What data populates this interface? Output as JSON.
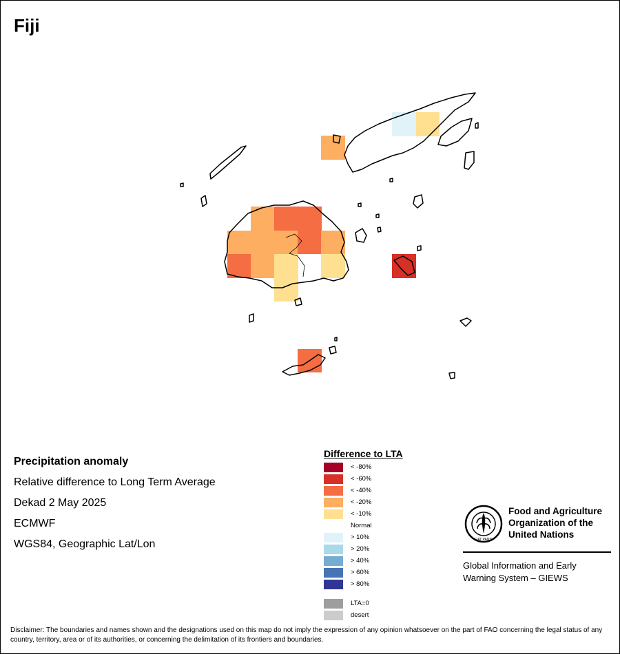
{
  "map": {
    "title": "Fiji",
    "info_lines": [
      "Precipitation anomaly",
      "Relative difference to Long Term Average",
      "Dekad 2 May 2025",
      "ECMWF",
      "WGS84, Geographic Lat/Lon"
    ]
  },
  "legend": {
    "title": "Difference to LTA",
    "items": [
      {
        "label": "< -80%",
        "color": "#a50026"
      },
      {
        "label": "< -60%",
        "color": "#d73027"
      },
      {
        "label": "< -40%",
        "color": "#f46d43"
      },
      {
        "label": "< -20%",
        "color": "#fdae61"
      },
      {
        "label": "< -10%",
        "color": "#fee090"
      },
      {
        "label": "Normal",
        "color": "#ffffff"
      },
      {
        "label": "> 10%",
        "color": "#e0f3f8"
      },
      {
        "label": "> 20%",
        "color": "#abd9e9"
      },
      {
        "label": "> 40%",
        "color": "#74add1"
      },
      {
        "label": "> 60%",
        "color": "#4575b4"
      },
      {
        "label": "> 80%",
        "color": "#313695"
      },
      {
        "label": "",
        "color": ""
      },
      {
        "label": "LTA=0",
        "color": "#9e9e9e"
      },
      {
        "label": "desert",
        "color": "#cccccc"
      }
    ]
  },
  "logo": {
    "org_lines": [
      "Food and Agriculture",
      "Organization of the",
      "United Nations"
    ],
    "seal_text": "FIAT PANIS",
    "giews_lines": [
      "Global Information and Early",
      "Warning System – GIEWS"
    ]
  },
  "disclaimer": "Disclaimer: The boundaries and names shown and the designations used on this map do not imply the expression of any opinion whatsoever on the part of FAO concerning the legal status of any country, territory, area or of its authorities, or concerning the delimitation of its frontiers and boundaries."
}
